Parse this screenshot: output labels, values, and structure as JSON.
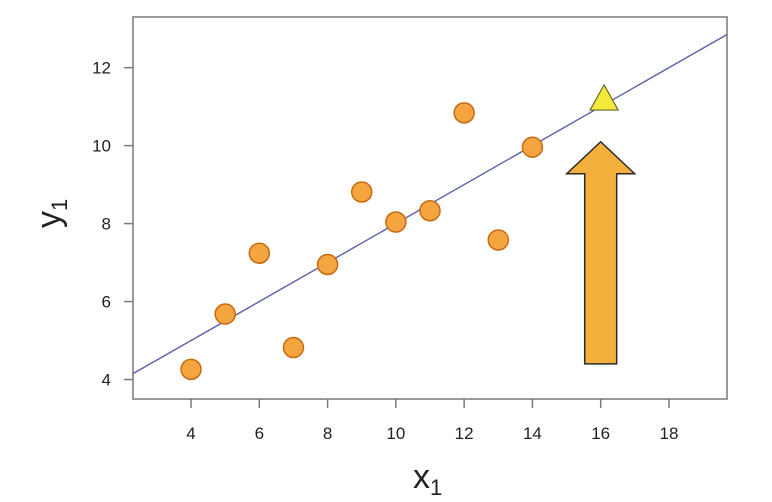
{
  "chart_data": {
    "type": "scatter",
    "title": "",
    "xlabel": "x",
    "xlabel_subscript": "1",
    "ylabel": "y",
    "ylabel_subscript": "1",
    "xlim": [
      2.3,
      19.7
    ],
    "ylim": [
      3.5,
      13.3
    ],
    "xticks": [
      4,
      6,
      8,
      10,
      12,
      14,
      16,
      18
    ],
    "yticks": [
      4,
      6,
      8,
      10,
      12
    ],
    "grid": false,
    "series": [
      {
        "type": "scatter",
        "points": [
          {
            "x": 4,
            "y": 4.26
          },
          {
            "x": 5,
            "y": 5.68
          },
          {
            "x": 6,
            "y": 7.24
          },
          {
            "x": 7,
            "y": 4.82
          },
          {
            "x": 8,
            "y": 6.95
          },
          {
            "x": 9,
            "y": 8.81
          },
          {
            "x": 10,
            "y": 8.04
          },
          {
            "x": 11,
            "y": 8.33
          },
          {
            "x": 12,
            "y": 10.84
          },
          {
            "x": 13,
            "y": 7.58
          },
          {
            "x": 14,
            "y": 9.96
          }
        ],
        "color": "#f5a540",
        "edge_color": "#c76a12"
      },
      {
        "type": "line",
        "points": [
          {
            "x": 2.3,
            "y": 4.15
          },
          {
            "x": 19.7,
            "y": 12.85
          }
        ],
        "color": "#5a5fa8"
      }
    ],
    "annotations": [
      {
        "type": "marker",
        "shape": "triangle",
        "x": 16.1,
        "y": 11.2,
        "color": "#f4ea3a"
      },
      {
        "type": "arrow",
        "direction": "up",
        "x": 16.0,
        "y_from": 4.4,
        "y_to": 10.1,
        "color": "#f3b03c"
      }
    ]
  }
}
